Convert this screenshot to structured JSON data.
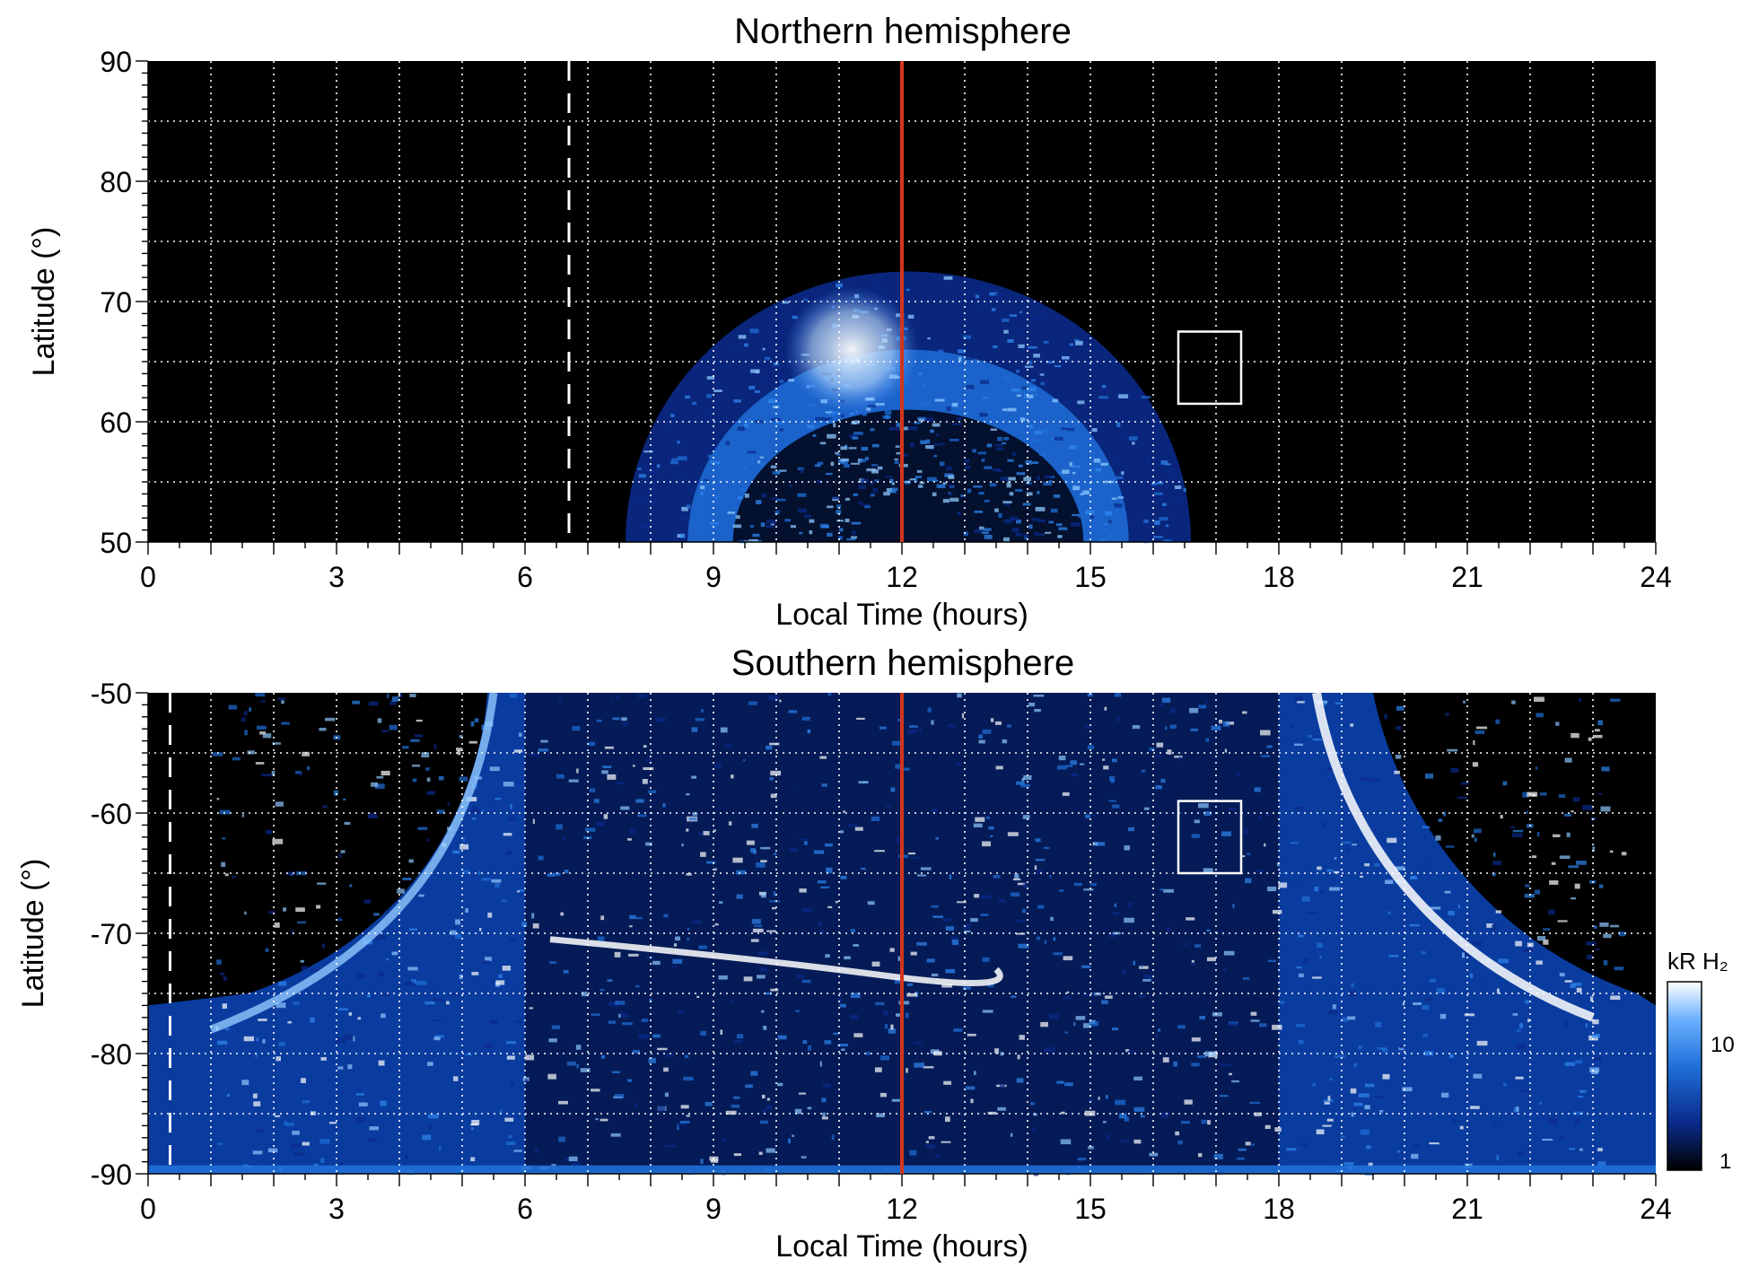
{
  "colors": {
    "background": "#000000",
    "aurora_low": "#0a2a8a",
    "aurora_mid": "#1f6fd8",
    "aurora_high": "#8ec8ff",
    "aurora_peak": "#ffffff",
    "noon_line": "#d2361c",
    "grid": "#ffffff"
  },
  "chart_data": [
    {
      "type": "heatmap",
      "title": "Northern hemisphere",
      "xlabel": "Local Time (hours)",
      "ylabel": "Latitude (°)",
      "xlim": [
        0,
        24
      ],
      "ylim": [
        50,
        90
      ],
      "xticks": [
        "0",
        "3",
        "6",
        "9",
        "12",
        "15",
        "18",
        "21",
        "24"
      ],
      "yticks": [
        "50",
        "60",
        "70",
        "80",
        "90"
      ],
      "grid": true,
      "noon_line_lt": 12,
      "dashed_line_lt": 6.7,
      "box": {
        "lt": [
          16.4,
          17.4
        ],
        "lat": [
          61.5,
          67.5
        ]
      },
      "emission_region": {
        "lt_center": 12.1,
        "half_width_lt": 4.5,
        "top_lat": 72.5,
        "oval_lat": 66
      }
    },
    {
      "type": "heatmap",
      "title": "Southern hemisphere",
      "xlabel": "Local Time (hours)",
      "ylabel": "Latitude (°)",
      "xlim": [
        0,
        24
      ],
      "ylim": [
        -90,
        -50
      ],
      "xticks": [
        "0",
        "3",
        "6",
        "9",
        "12",
        "15",
        "18",
        "21",
        "24"
      ],
      "yticks": [
        "-90",
        "-80",
        "-70",
        "-60",
        "-50"
      ],
      "grid": true,
      "noon_line_lt": 12,
      "dashed_line_lt": 0.35,
      "box": {
        "lt": [
          16.4,
          17.4
        ],
        "lat": [
          -65,
          -59
        ]
      },
      "colorbar": {
        "label": "kR H₂",
        "ticks": [
          "1",
          "10"
        ],
        "scale": "log"
      }
    }
  ]
}
